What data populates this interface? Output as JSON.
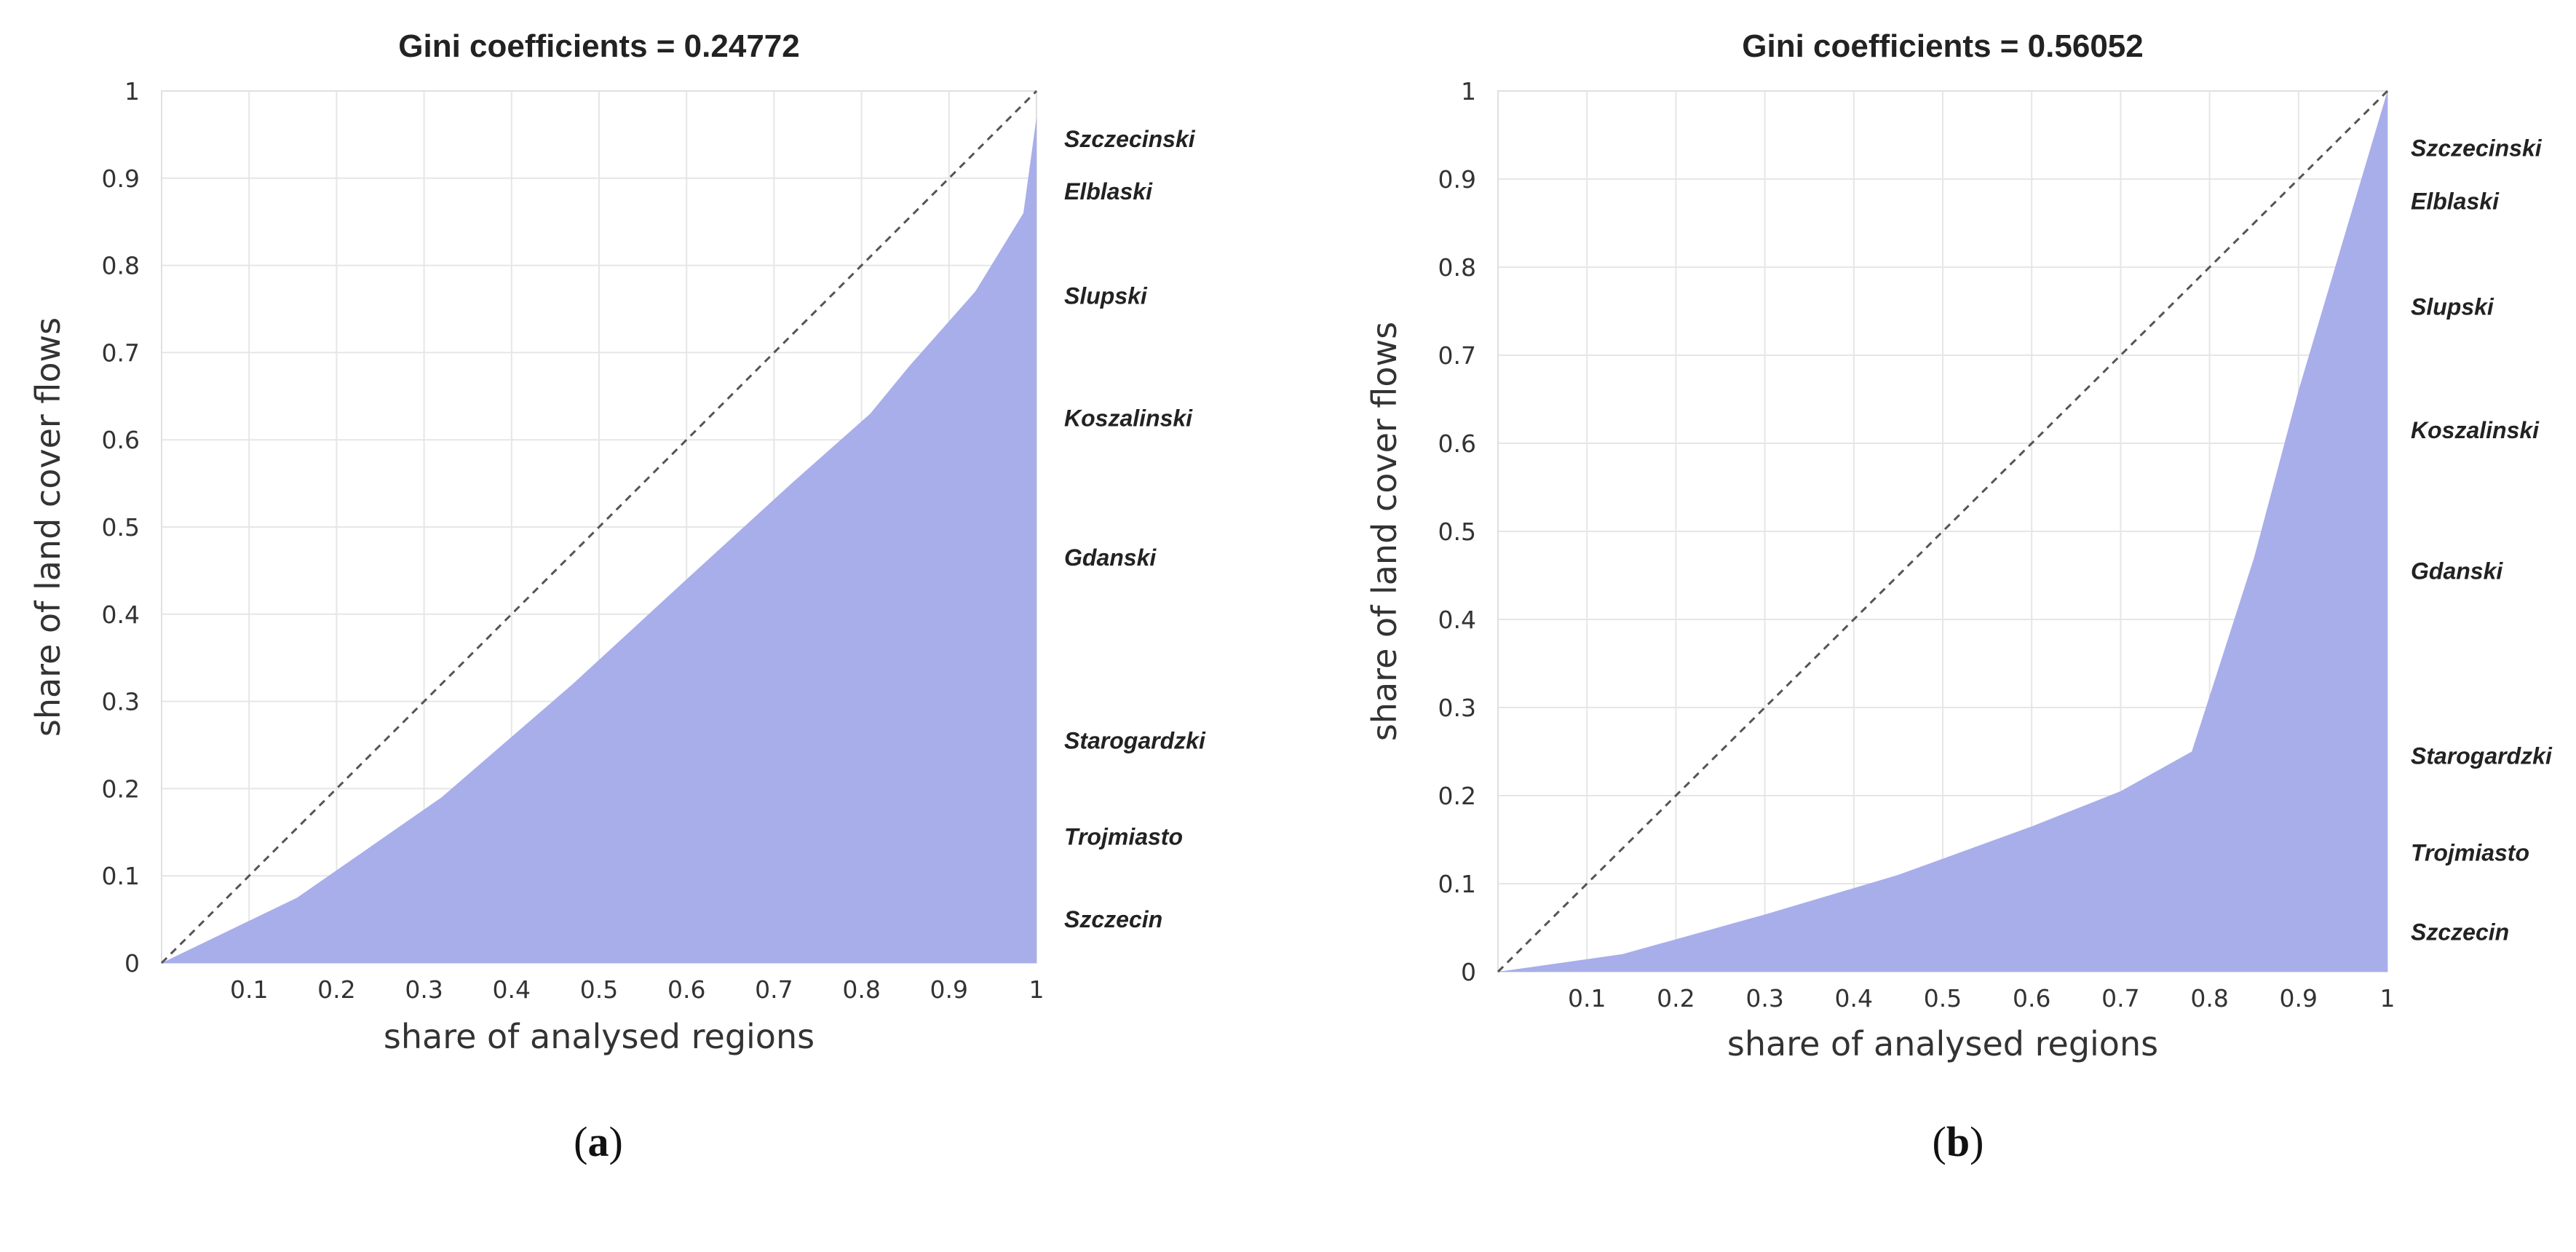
{
  "chart_data": [
    {
      "type": "area",
      "panel": "a",
      "caption_letter": "a",
      "title": "Gini coefficients = 0.24772",
      "xlabel": "share of analysed regions",
      "ylabel": "share of land cover flows",
      "xlim": [
        0,
        1
      ],
      "ylim": [
        0,
        1
      ],
      "xticks": [
        "0.1",
        "0.2",
        "0.3",
        "0.4",
        "0.5",
        "0.6",
        "0.7",
        "0.8",
        "0.9",
        "1"
      ],
      "xtick_values": [
        0.1,
        0.2,
        0.3,
        0.4,
        0.5,
        0.6,
        0.7,
        0.8,
        0.9,
        1
      ],
      "yticks": [
        "0",
        "0.1",
        "0.2",
        "0.3",
        "0.4",
        "0.5",
        "0.6",
        "0.7",
        "0.8",
        "0.9",
        "1"
      ],
      "ytick_values": [
        0,
        0.1,
        0.2,
        0.3,
        0.4,
        0.5,
        0.6,
        0.7,
        0.8,
        0.9,
        1
      ],
      "x": [
        0,
        0.155,
        0.32,
        0.47,
        0.6,
        0.72,
        0.81,
        0.855,
        0.93,
        0.985,
        1.0
      ],
      "y": [
        0,
        0.075,
        0.19,
        0.32,
        0.44,
        0.55,
        0.63,
        0.685,
        0.77,
        0.86,
        0.97
      ],
      "equality_line": true,
      "labels": [
        {
          "text": "Szczecinski",
          "y": 0.945
        },
        {
          "text": "Elblaski",
          "y": 0.885
        },
        {
          "text": "Slupski",
          "y": 0.765
        },
        {
          "text": "Koszalinski",
          "y": 0.625
        },
        {
          "text": "Gdanski",
          "y": 0.465
        },
        {
          "text": "Starogardzki",
          "y": 0.255
        },
        {
          "text": "Trojmiasto",
          "y": 0.145
        },
        {
          "text": "Szczecin",
          "y": 0.05
        }
      ]
    },
    {
      "type": "area",
      "panel": "b",
      "caption_letter": "b",
      "title": "Gini coefficients = 0.56052",
      "xlabel": "share of analysed regions",
      "ylabel": "share of land cover flows",
      "xlim": [
        0,
        1
      ],
      "ylim": [
        0,
        1
      ],
      "xticks": [
        "0.1",
        "0.2",
        "0.3",
        "0.4",
        "0.5",
        "0.6",
        "0.7",
        "0.8",
        "0.9",
        "1"
      ],
      "xtick_values": [
        0.1,
        0.2,
        0.3,
        0.4,
        0.5,
        0.6,
        0.7,
        0.8,
        0.9,
        1
      ],
      "yticks": [
        "0",
        "0.1",
        "0.2",
        "0.3",
        "0.4",
        "0.5",
        "0.6",
        "0.7",
        "0.8",
        "0.9",
        "1"
      ],
      "ytick_values": [
        0,
        0.1,
        0.2,
        0.3,
        0.4,
        0.5,
        0.6,
        0.7,
        0.8,
        0.9,
        1
      ],
      "x": [
        0,
        0.14,
        0.3,
        0.45,
        0.6,
        0.7,
        0.78,
        0.85,
        0.9,
        0.95,
        1.0
      ],
      "y": [
        0,
        0.02,
        0.065,
        0.11,
        0.165,
        0.205,
        0.25,
        0.47,
        0.66,
        0.83,
        1.0
      ],
      "equality_line": true,
      "labels": [
        {
          "text": "Szczecinski",
          "y": 0.935
        },
        {
          "text": "Elblaski",
          "y": 0.875
        },
        {
          "text": "Slupski",
          "y": 0.755
        },
        {
          "text": "Koszalinski",
          "y": 0.615
        },
        {
          "text": "Gdanski",
          "y": 0.455
        },
        {
          "text": "Starogardzki",
          "y": 0.245
        },
        {
          "text": "Trojmiasto",
          "y": 0.135
        },
        {
          "text": "Szczecin",
          "y": 0.045
        }
      ]
    }
  ]
}
